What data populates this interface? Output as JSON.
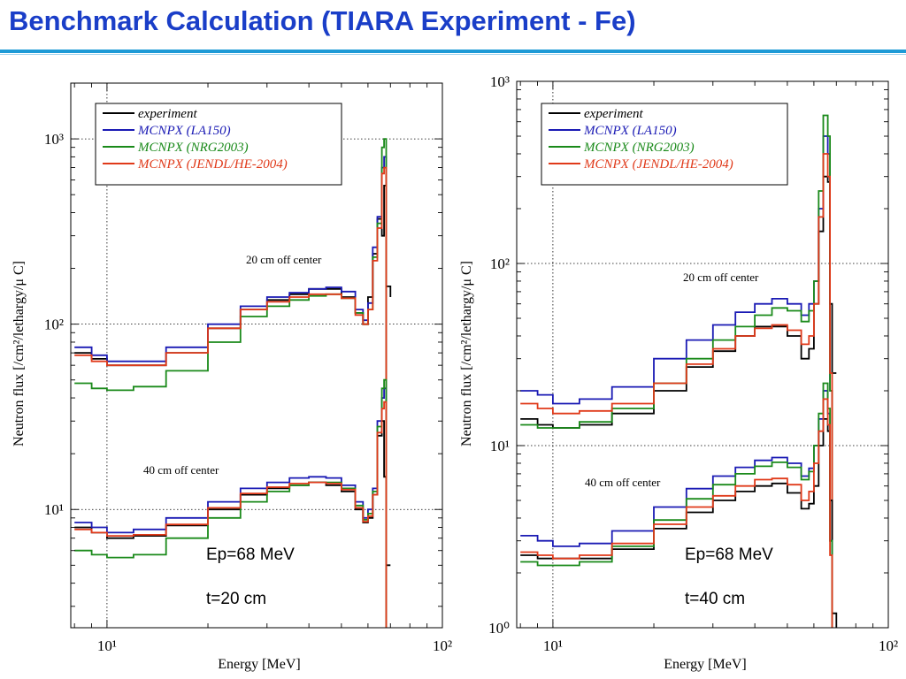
{
  "slide": {
    "title": "Benchmark Calculation (TIARA Experiment - Fe)"
  },
  "colors": {
    "title": "#1a3ec8",
    "rule": "#1e9ad6",
    "experiment": "#000000",
    "la150": "#1a1ab4",
    "nrg2003": "#1a8a1a",
    "jendl": "#e03a1a"
  },
  "chart_data": [
    {
      "type": "line",
      "xlabel": "Energy [MeV]",
      "ylabel": "Neutron flux [/cm²/lethargy/μ C]",
      "xscale": "log",
      "yscale": "log",
      "xlim": [
        7.8,
        100
      ],
      "ylim": [
        2.3,
        2000
      ],
      "x_ticks": [
        {
          "v": 10,
          "label": "10¹"
        },
        {
          "v": 100,
          "label": "10²"
        }
      ],
      "y_ticks": [
        {
          "v": 10,
          "label": "10¹"
        },
        {
          "v": 100,
          "label": "10²"
        },
        {
          "v": 1000,
          "label": "10³"
        }
      ],
      "legend": [
        "experiment",
        "MCNPX (LA150)",
        "MCNPX (NRG2003)",
        "MCNPX (JENDL/HE-2004)"
      ],
      "legend_position": "top-left",
      "annotations": [
        "20 cm off center",
        "40 cm off center",
        "Ep=68 MeV",
        "t=20 cm"
      ],
      "groups": [
        {
          "label": "20 cm off center",
          "series": [
            {
              "name": "experiment",
              "x": [
                8,
                9,
                10,
                12,
                15,
                20,
                25,
                30,
                35,
                40,
                45,
                50,
                55,
                58,
                60,
                62,
                64,
                66,
                67,
                68,
                70
              ],
              "y": [
                70,
                65,
                60,
                60,
                70,
                95,
                120,
                135,
                145,
                155,
                155,
                140,
                115,
                100,
                140,
                240,
                370,
                300,
                560,
                160,
                140
              ]
            },
            {
              "name": "MCNPX (LA150)",
              "x": [
                8,
                9,
                10,
                12,
                15,
                20,
                25,
                30,
                35,
                40,
                45,
                50,
                55,
                58,
                60,
                62,
                64,
                66,
                67,
                68
              ],
              "y": [
                75,
                68,
                63,
                63,
                75,
                100,
                125,
                140,
                148,
                155,
                158,
                150,
                120,
                105,
                130,
                260,
                380,
                700,
                800,
                2.3
              ]
            },
            {
              "name": "MCNPX (NRG2003)",
              "x": [
                8,
                9,
                10,
                12,
                15,
                20,
                25,
                30,
                35,
                40,
                45,
                50,
                55,
                58,
                60,
                62,
                64,
                66,
                67,
                68
              ],
              "y": [
                48,
                45,
                44,
                46,
                56,
                80,
                110,
                125,
                135,
                142,
                145,
                138,
                115,
                100,
                120,
                230,
                350,
                900,
                1000,
                2.3
              ]
            },
            {
              "name": "MCNPX (JENDL/HE-2004)",
              "x": [
                8,
                9,
                10,
                12,
                15,
                20,
                25,
                30,
                35,
                40,
                45,
                50,
                55,
                58,
                60,
                62,
                64,
                66,
                67,
                68
              ],
              "y": [
                68,
                63,
                60,
                60,
                70,
                95,
                120,
                132,
                140,
                145,
                145,
                138,
                112,
                100,
                120,
                220,
                330,
                650,
                700,
                2.3
              ]
            }
          ]
        },
        {
          "label": "40 cm off center",
          "series": [
            {
              "name": "experiment",
              "x": [
                8,
                9,
                10,
                12,
                15,
                20,
                25,
                30,
                35,
                40,
                45,
                50,
                55,
                58,
                60,
                62,
                64,
                66,
                67,
                68,
                70
              ],
              "y": [
                8,
                7.5,
                7,
                7.2,
                8.2,
                10,
                12,
                13,
                13.5,
                14,
                13.5,
                12.5,
                10,
                8.5,
                9,
                12,
                25,
                30,
                15,
                5,
                5
              ]
            },
            {
              "name": "MCNPX (LA150)",
              "x": [
                8,
                9,
                10,
                12,
                15,
                20,
                25,
                30,
                35,
                40,
                45,
                50,
                55,
                58,
                60,
                62,
                64,
                66,
                67,
                68
              ],
              "y": [
                8.5,
                8,
                7.5,
                7.8,
                9,
                11,
                13,
                14,
                14.8,
                15,
                14.8,
                13.5,
                11,
                9,
                10,
                13,
                30,
                40,
                45,
                2.3
              ]
            },
            {
              "name": "MCNPX (NRG2003)",
              "x": [
                8,
                9,
                10,
                12,
                15,
                20,
                25,
                30,
                35,
                40,
                45,
                50,
                55,
                58,
                60,
                62,
                64,
                66,
                67,
                68
              ],
              "y": [
                6,
                5.7,
                5.5,
                5.7,
                7,
                9,
                11,
                12.5,
                13.5,
                14,
                14,
                13,
                10.5,
                8.8,
                9.5,
                12.5,
                28,
                45,
                50,
                2.3
              ]
            },
            {
              "name": "MCNPX (JENDL/HE-2004)",
              "x": [
                8,
                9,
                10,
                12,
                15,
                20,
                25,
                30,
                35,
                40,
                45,
                50,
                55,
                58,
                60,
                62,
                64,
                66,
                67,
                68
              ],
              "y": [
                7.8,
                7.5,
                7.2,
                7.3,
                8.3,
                10.2,
                12.2,
                13.2,
                13.8,
                14,
                13.8,
                12.8,
                10.2,
                8.6,
                9.2,
                12,
                26,
                35,
                38,
                2.3
              ]
            }
          ]
        }
      ]
    },
    {
      "type": "line",
      "xlabel": "Energy [MeV]",
      "ylabel": "Neutron flux [/cm²/lethargy/μ C]",
      "xscale": "log",
      "yscale": "log",
      "xlim": [
        7.8,
        100
      ],
      "ylim": [
        1,
        1000
      ],
      "x_ticks": [
        {
          "v": 10,
          "label": "10¹"
        },
        {
          "v": 100,
          "label": "10²"
        }
      ],
      "y_ticks": [
        {
          "v": 1,
          "label": "10⁰"
        },
        {
          "v": 10,
          "label": "10¹"
        },
        {
          "v": 100,
          "label": "10²"
        },
        {
          "v": 1000,
          "label": "10³"
        }
      ],
      "legend": [
        "experiment",
        "MCNPX (LA150)",
        "MCNPX (NRG2003)",
        "MCNPX (JENDL/HE-2004)"
      ],
      "legend_position": "top-left",
      "annotations": [
        "20 cm off center",
        "40 cm off center",
        "Ep=68 MeV",
        "t=40 cm"
      ],
      "groups": [
        {
          "label": "20 cm off center",
          "series": [
            {
              "name": "experiment",
              "x": [
                8,
                9,
                10,
                12,
                15,
                20,
                25,
                30,
                35,
                40,
                45,
                50,
                55,
                58,
                60,
                62,
                64,
                66,
                67,
                68,
                70
              ],
              "y": [
                14,
                13,
                12.5,
                13,
                15,
                20,
                27,
                33,
                40,
                45,
                45,
                40,
                30,
                34,
                60,
                150,
                300,
                280,
                60,
                25,
                25
              ]
            },
            {
              "name": "MCNPX (LA150)",
              "x": [
                8,
                9,
                10,
                12,
                15,
                20,
                25,
                30,
                35,
                40,
                45,
                50,
                55,
                58,
                60,
                62,
                64,
                66,
                67,
                68
              ],
              "y": [
                20,
                19,
                17,
                18,
                21,
                30,
                38,
                46,
                54,
                60,
                64,
                60,
                52,
                60,
                80,
                200,
                500,
                400,
                20,
                1
              ]
            },
            {
              "name": "MCNPX (NRG2003)",
              "x": [
                8,
                9,
                10,
                12,
                15,
                20,
                25,
                30,
                35,
                40,
                45,
                50,
                55,
                58,
                60,
                62,
                64,
                66,
                67,
                68
              ],
              "y": [
                13,
                12.5,
                12.5,
                13.5,
                16,
                22,
                30,
                38,
                45,
                52,
                57,
                55,
                48,
                55,
                80,
                250,
                650,
                500,
                20,
                1
              ]
            },
            {
              "name": "MCNPX (JENDL/HE-2004)",
              "x": [
                8,
                9,
                10,
                12,
                15,
                20,
                25,
                30,
                35,
                40,
                45,
                50,
                55,
                58,
                60,
                62,
                64,
                66,
                67,
                68
              ],
              "y": [
                17,
                16,
                15,
                15.5,
                17,
                22,
                28,
                34,
                40,
                44,
                46,
                43,
                36,
                40,
                60,
                180,
                400,
                300,
                25,
                1
              ]
            }
          ]
        },
        {
          "label": "40 cm off center",
          "series": [
            {
              "name": "experiment",
              "x": [
                8,
                9,
                10,
                12,
                15,
                20,
                25,
                30,
                35,
                40,
                45,
                50,
                55,
                58,
                60,
                62,
                64,
                66,
                67,
                68,
                70
              ],
              "y": [
                2.5,
                2.4,
                2.4,
                2.4,
                2.7,
                3.5,
                4.3,
                5,
                5.6,
                6,
                6.2,
                5.5,
                4.5,
                4.8,
                6,
                10,
                14,
                12,
                5,
                1.2,
                1
              ]
            },
            {
              "name": "MCNPX (LA150)",
              "x": [
                8,
                9,
                10,
                12,
                15,
                20,
                25,
                30,
                35,
                40,
                45,
                50,
                55,
                58,
                60,
                62,
                64,
                66,
                67,
                68
              ],
              "y": [
                3.2,
                3,
                2.8,
                2.9,
                3.4,
                4.6,
                5.8,
                6.8,
                7.6,
                8.3,
                8.6,
                8,
                6.8,
                7.5,
                10,
                14,
                20,
                15,
                3,
                1
              ]
            },
            {
              "name": "MCNPX (NRG2003)",
              "x": [
                8,
                9,
                10,
                12,
                15,
                20,
                25,
                30,
                35,
                40,
                45,
                50,
                55,
                58,
                60,
                62,
                64,
                66,
                67,
                68
              ],
              "y": [
                2.3,
                2.2,
                2.2,
                2.3,
                2.8,
                3.9,
                5.1,
                6.1,
                7,
                7.7,
                8.1,
                7.6,
                6.5,
                7.2,
                10,
                15,
                22,
                16,
                3,
                1
              ]
            },
            {
              "name": "MCNPX (JENDL/HE-2004)",
              "x": [
                8,
                9,
                10,
                12,
                15,
                20,
                25,
                30,
                35,
                40,
                45,
                50,
                55,
                58,
                60,
                62,
                64,
                66,
                67,
                68
              ],
              "y": [
                2.6,
                2.5,
                2.4,
                2.5,
                2.9,
                3.7,
                4.6,
                5.3,
                6,
                6.5,
                6.6,
                6.1,
                5,
                5.6,
                8,
                12,
                18,
                13,
                2.5,
                1
              ]
            }
          ]
        }
      ]
    }
  ]
}
